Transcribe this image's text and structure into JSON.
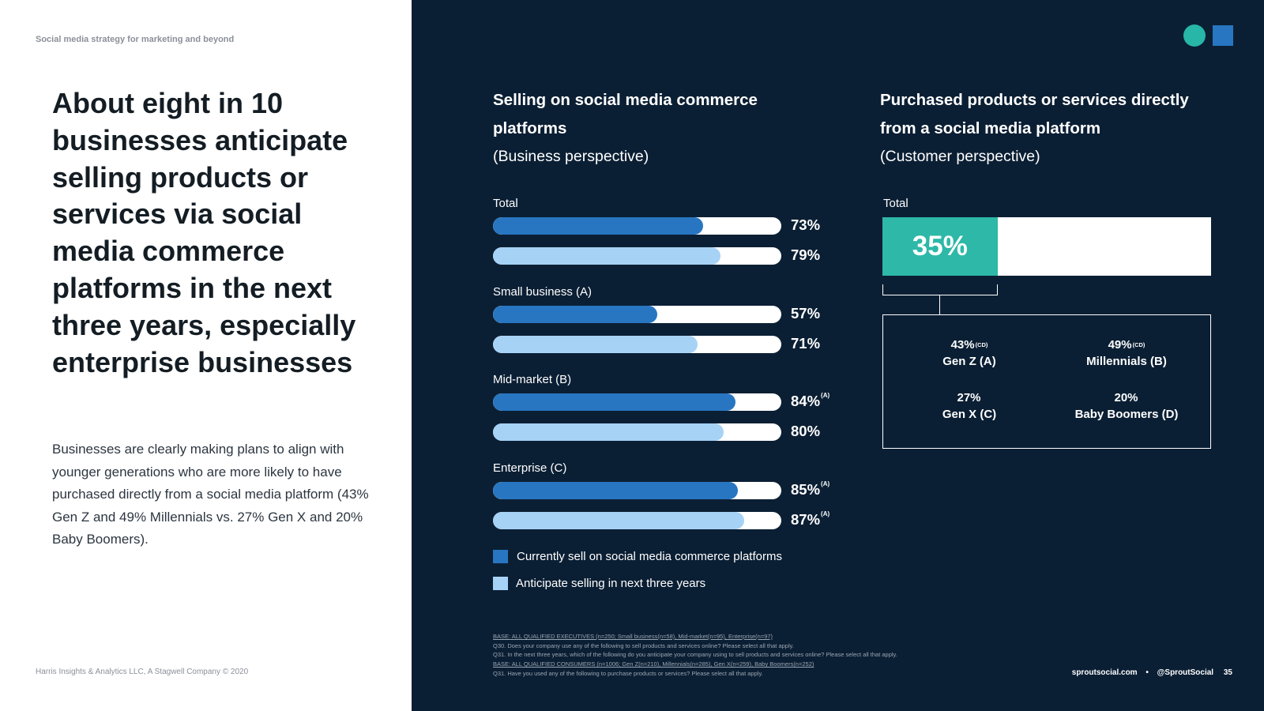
{
  "header": {
    "kicker": "Social media strategy for marketing and beyond"
  },
  "left": {
    "headline": "About eight in 10 businesses anticipate selling products or services via social media commerce platforms in the next three years, especially enterprise businesses",
    "body": "Businesses are clearly making plans to align with younger generations who are more likely to have purchased directly from a social media platform (43% Gen Z and 49% Millennials vs. 27% Gen X and 20% Baby Boomers)."
  },
  "footer": {
    "left": "Harris Insights & Analytics LLC, A Stagwell Company © 2020",
    "site": "sproutsocial.com",
    "separator": "•",
    "handle": "@SproutSocial",
    "page": "35"
  },
  "notes": [
    "BASE: ALL QUALIFIED EXECUTIVES (n=250; Small business(n=58), Mid-market(n=95), Enterprise(n=97)",
    "Q30. Does your company use any of the following to sell products and services online? Please select all that apply.",
    "Q31. In the next three years, which of the following do you anticipate your company using to sell products and services online? Please select all that apply.",
    "BASE: ALL QUALIFIED CONSUMERS (n=1006; Gen Z(n=210), Millennials(n=285), Gen X(n=259), Baby Boomers(n=252)",
    "Q31. Have you used any of the following to purchase products or services? Please select all that apply."
  ],
  "colors": {
    "panel": "#0b1f34",
    "current": "#2876c2",
    "anticipate": "#a6d2f6",
    "teal": "#2db8a8"
  },
  "chart_data": [
    {
      "type": "bar",
      "orientation": "horizontal",
      "title": "Selling on social media commerce platforms",
      "subtitle": "(Business perspective)",
      "categories": [
        "Total",
        "Small business (A)",
        "Mid-market (B)",
        "Enterprise (C)"
      ],
      "series": [
        {
          "name": "Currently sell on social media commerce platforms",
          "values": [
            73,
            57,
            84,
            85
          ],
          "significance": [
            "",
            "",
            "(A)",
            "(A)"
          ]
        },
        {
          "name": "Anticipate selling in next three years",
          "values": [
            79,
            71,
            80,
            87
          ],
          "significance": [
            "",
            "",
            "",
            "(A)"
          ]
        }
      ],
      "unit": "%",
      "xlim": [
        0,
        100
      ],
      "legend": "bottom"
    },
    {
      "type": "bar",
      "orientation": "horizontal",
      "title": "Purchased products or services directly from a social media platform",
      "subtitle": "(Customer perspective)",
      "categories": [
        "Total"
      ],
      "values": [
        35
      ],
      "unit": "%",
      "xlim": [
        0,
        100
      ],
      "breakdown": [
        {
          "value": "43%",
          "sig": "(CD)",
          "label": "Gen Z (A)"
        },
        {
          "value": "49%",
          "sig": "(CD)",
          "label": "Millennials (B)"
        },
        {
          "value": "27%",
          "sig": "",
          "label": "Gen X (C)"
        },
        {
          "value": "20%",
          "sig": "",
          "label": "Baby Boomers (D)"
        }
      ]
    }
  ]
}
